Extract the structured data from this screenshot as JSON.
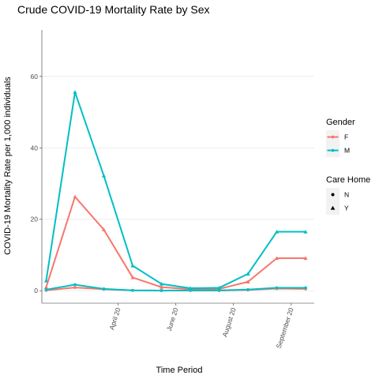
{
  "colors": {
    "F": "#F8766D",
    "M": "#00BFC4",
    "grid": "#ebebeb",
    "axis": "#333333",
    "legend_key_bg": "#f2f2f2"
  },
  "chart_data": {
    "type": "line",
    "title": "Crude COVID-19 Mortality Rate by Sex",
    "xlabel": "Time Period",
    "ylabel": "COVID-19 Mortality Rate per 1,000 individuals",
    "x_tick_labels": [
      "April 20",
      "June 20",
      "August 20",
      "September 20"
    ],
    "x_tick_positions": [
      3.5,
      5.5,
      7.5,
      9.5
    ],
    "y_ticks": [
      0,
      20,
      40,
      60
    ],
    "ylim": [
      -3.5,
      73
    ],
    "xlim": [
      0.85,
      10.3
    ],
    "grid": true,
    "grid_axis": "y",
    "legend_position": "right",
    "x": [
      1,
      2,
      3,
      4,
      5,
      6,
      7,
      8,
      9,
      10
    ],
    "series": [
      {
        "gender": "F",
        "care_home": "N",
        "values": [
          0.1,
          0.9,
          0.4,
          0.1,
          0.05,
          0.05,
          0.05,
          0.2,
          0.6,
          0.5
        ]
      },
      {
        "gender": "F",
        "care_home": "Y",
        "values": [
          1.0,
          26.3,
          17.1,
          3.7,
          1.0,
          0.4,
          0.5,
          2.5,
          9.1,
          9.1
        ]
      },
      {
        "gender": "M",
        "care_home": "N",
        "values": [
          0.3,
          1.7,
          0.5,
          0.1,
          0.05,
          0.1,
          0.1,
          0.3,
          0.8,
          0.8
        ]
      },
      {
        "gender": "M",
        "care_home": "Y",
        "values": [
          2.8,
          55.6,
          32.2,
          7.0,
          1.9,
          0.7,
          0.8,
          4.7,
          16.5,
          16.5
        ]
      }
    ]
  },
  "legend": {
    "gender_title": "Gender",
    "gender_items": [
      {
        "label": "F",
        "color": "#F8766D"
      },
      {
        "label": "M",
        "color": "#00BFC4"
      }
    ],
    "care_home_title": "Care Home",
    "care_home_items": [
      {
        "label": "N",
        "shape": "circle"
      },
      {
        "label": "Y",
        "shape": "triangle"
      }
    ]
  }
}
